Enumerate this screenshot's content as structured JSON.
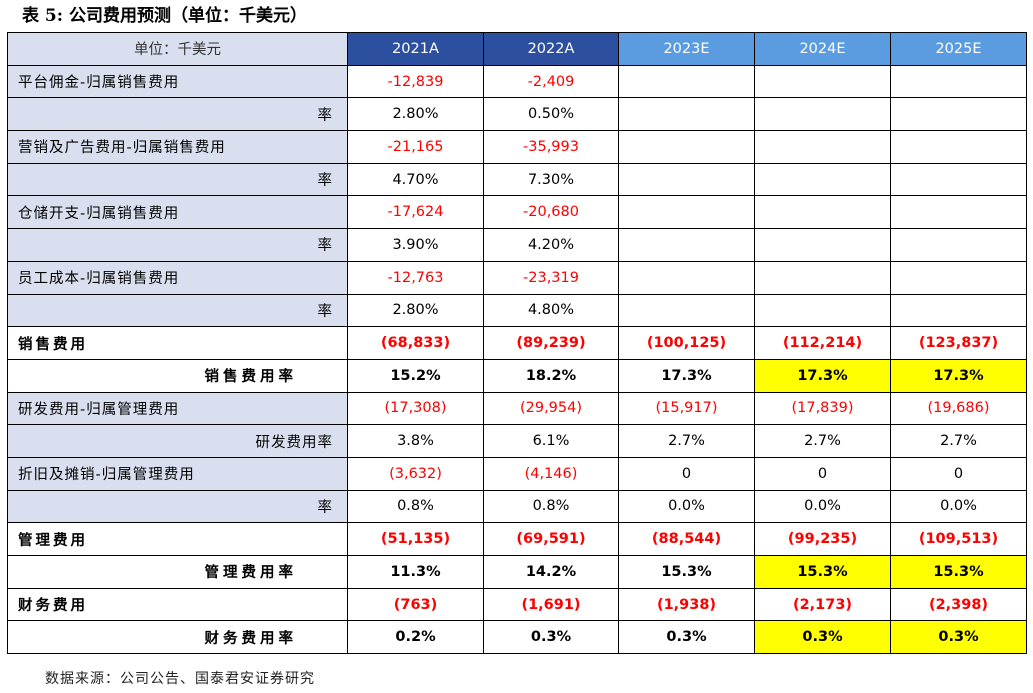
{
  "title": "表 5: 公司费用预测（单位：千美元）",
  "table": {
    "header": [
      "单位：千美元",
      "2021A",
      "2022A",
      "2023E",
      "2024E",
      "2025E"
    ],
    "rows": [
      {
        "label": "平台佣金-归属销售费用",
        "cells": [
          "-12,839",
          "-2,409",
          "",
          "",
          ""
        ]
      },
      {
        "label": "率",
        "cells": [
          "2.80%",
          "0.50%",
          "",
          "",
          ""
        ]
      },
      {
        "label": "营销及广告费用-归属销售费用",
        "cells": [
          "-21,165",
          "-35,993",
          "",
          "",
          ""
        ]
      },
      {
        "label": "率",
        "cells": [
          "4.70%",
          "7.30%",
          "",
          "",
          ""
        ]
      },
      {
        "label": "仓储开支-归属销售费用",
        "cells": [
          "-17,624",
          "-20,680",
          "",
          "",
          ""
        ]
      },
      {
        "label": "率",
        "cells": [
          "3.90%",
          "4.20%",
          "",
          "",
          ""
        ]
      },
      {
        "label": "员工成本-归属销售费用",
        "cells": [
          "-12,763",
          "-23,319",
          "",
          "",
          ""
        ]
      },
      {
        "label": "率",
        "cells": [
          "2.80%",
          "4.80%",
          "",
          "",
          ""
        ]
      },
      {
        "label": "销售费用",
        "cells": [
          "(68,833)",
          "(89,239)",
          "(100,125)",
          "(112,214)",
          "(123,837)"
        ]
      },
      {
        "label": "销售费用率",
        "cells": [
          "15.2%",
          "18.2%",
          "17.3%",
          "17.3%",
          "17.3%"
        ]
      },
      {
        "label": "研发费用-归属管理费用",
        "cells": [
          "(17,308)",
          "(29,954)",
          "(15,917)",
          "(17,839)",
          "(19,686)"
        ]
      },
      {
        "label": "研发费用率",
        "cells": [
          "3.8%",
          "6.1%",
          "2.7%",
          "2.7%",
          "2.7%"
        ]
      },
      {
        "label": "折旧及摊销-归属管理费用",
        "cells": [
          "(3,632)",
          "(4,146)",
          "0",
          "0",
          "0"
        ]
      },
      {
        "label": "率",
        "cells": [
          "0.8%",
          "0.8%",
          "0.0%",
          "0.0%",
          "0.0%"
        ]
      },
      {
        "label": "管理费用",
        "cells": [
          "(51,135)",
          "(69,591)",
          "(88,544)",
          "(99,235)",
          "(109,513)"
        ]
      },
      {
        "label": "管理费用率",
        "cells": [
          "11.3%",
          "14.2%",
          "15.3%",
          "15.3%",
          "15.3%"
        ]
      },
      {
        "label": "财务费用",
        "cells": [
          "(763)",
          "(1,691)",
          "(1,938)",
          "(2,173)",
          "(2,398)"
        ]
      },
      {
        "label": "财务费用率",
        "cells": [
          "0.2%",
          "0.3%",
          "0.3%",
          "0.3%",
          "0.3%"
        ]
      }
    ]
  },
  "source": "数据来源：公司公告、国泰君安证券研究",
  "colors": {
    "header_actual": "#2d4fa0",
    "header_estimate": "#5b9be0",
    "label_bg": "#d9dfee",
    "negative_text": "#ff0000",
    "highlight": "#ffff00"
  }
}
